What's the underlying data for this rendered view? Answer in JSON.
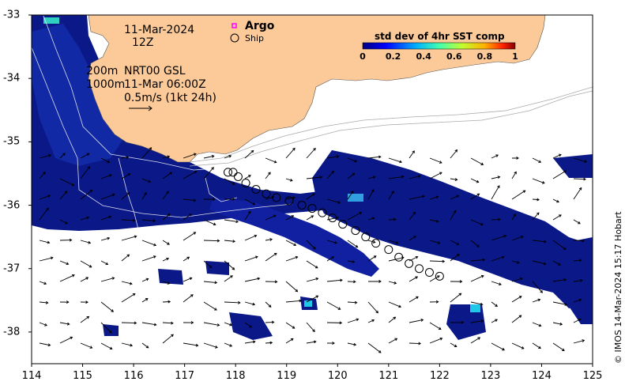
{
  "map": {
    "date": "11-Mar-2024",
    "hour": "12Z",
    "depth_200": "200m",
    "product": "NRT00 GSL",
    "depth_1000": "1000m",
    "analysis_time": "11-Mar 06:00Z",
    "scale_label": "0.5m/s (1kt 24h)",
    "legend": {
      "argo": "Argo",
      "ship": "Ship",
      "argo_color": "#ff00ff"
    },
    "colorbar": {
      "title": "std dev of 4hr SST comp",
      "ticks": [
        "0",
        "0.2",
        "0.4",
        "0.6",
        "0.8",
        "1"
      ]
    },
    "axes": {
      "x_ticks": [
        "114",
        "115",
        "116",
        "117",
        "118",
        "119",
        "120",
        "121",
        "122",
        "123",
        "124",
        "125"
      ],
      "y_ticks": [
        "-33",
        "-34",
        "-35",
        "-36",
        "-37",
        "-38"
      ],
      "x_range": [
        114,
        125
      ],
      "y_range": [
        -38.5,
        -33
      ]
    },
    "credit": "© IMOS 14-Mar-2024 15:17 Hobart",
    "colors": {
      "land": "#fcca98",
      "ocean_low": "#08107a",
      "ocean_mid": "#1428b4",
      "high": "#20c8e8"
    },
    "ship_track_lon": [
      117.85,
      117.95,
      118.05,
      118.2,
      118.4,
      118.6,
      118.8,
      119.05,
      119.3,
      119.5,
      119.7,
      119.9,
      120.1,
      120.35,
      120.55,
      120.75,
      121.0,
      121.2,
      121.4,
      121.6,
      121.8,
      122.0
    ],
    "ship_track_lat": [
      -35.48,
      -35.48,
      -35.55,
      -35.65,
      -35.75,
      -35.82,
      -35.88,
      -35.93,
      -36.0,
      -36.05,
      -36.12,
      -36.2,
      -36.3,
      -36.4,
      -36.5,
      -36.6,
      -36.7,
      -36.82,
      -36.92,
      -37.0,
      -37.06,
      -37.12
    ]
  }
}
